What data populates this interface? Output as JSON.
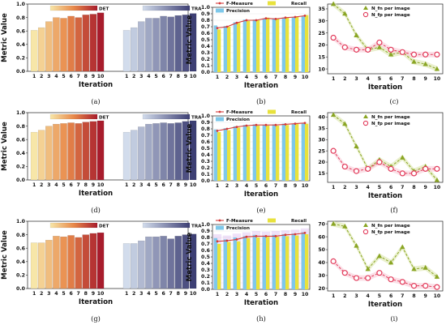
{
  "figure": {
    "sublabels": [
      "(a)",
      "(b)",
      "(c)",
      "(d)",
      "(e)",
      "(f)",
      "(g)",
      "(h)",
      "(i)"
    ]
  },
  "colors": {
    "det_start": "#f7e6a8",
    "det_mid": "#e8894a",
    "det_end": "#a81c2c",
    "tra_start": "#d2dcec",
    "tra_end": "#3d3f74",
    "fmeasure_line": "#d43a3a",
    "precision_bar": "#7ec8ea",
    "recall_bar": "#e8e23c",
    "fp_marker": "#e23a5a",
    "fn_marker": "#8aa524",
    "fp_band": "#f7c7d3",
    "fn_band": "#d9e3a6",
    "recall_band": "#d2a8ec"
  },
  "chart_data": [
    {
      "id": "a",
      "type": "bar",
      "ylabel": "Metric Value",
      "xlabel": "Iteration",
      "ylim": [
        0,
        1.0
      ],
      "yticks": [
        0,
        0.2,
        0.4,
        0.6,
        0.8,
        1.0
      ],
      "categories": [
        "1",
        "2",
        "3",
        "4",
        "5",
        "6",
        "7",
        "8",
        "9",
        "10"
      ],
      "legend": [
        "DET",
        "TRA"
      ],
      "series": [
        {
          "name": "DET",
          "values": [
            0.61,
            0.65,
            0.74,
            0.8,
            0.79,
            0.82,
            0.8,
            0.84,
            0.85,
            0.87
          ]
        },
        {
          "name": "TRA",
          "values": [
            0.61,
            0.65,
            0.74,
            0.79,
            0.79,
            0.82,
            0.81,
            0.83,
            0.84,
            0.86
          ]
        }
      ]
    },
    {
      "id": "b",
      "type": "bar",
      "ylabel": "Metric Value",
      "xlabel": "Iteration",
      "ylim": [
        0,
        1.0
      ],
      "yticks": [
        0,
        0.1,
        0.2,
        0.3,
        0.4,
        0.5,
        0.6,
        0.7,
        0.8,
        0.9,
        1.0
      ],
      "categories": [
        "1",
        "2",
        "3",
        "4",
        "5",
        "6",
        "7",
        "8",
        "9",
        "10"
      ],
      "legend": [
        "F-Measure",
        "Recall",
        "Precision"
      ],
      "series": [
        {
          "name": "Precision",
          "values": [
            0.72,
            0.71,
            0.77,
            0.81,
            0.81,
            0.82,
            0.83,
            0.84,
            0.85,
            0.86
          ]
        },
        {
          "name": "Recall",
          "values": [
            0.66,
            0.7,
            0.76,
            0.79,
            0.8,
            0.84,
            0.82,
            0.84,
            0.86,
            0.88
          ]
        },
        {
          "name": "F-Measure",
          "values": [
            0.68,
            0.7,
            0.76,
            0.8,
            0.8,
            0.83,
            0.82,
            0.84,
            0.85,
            0.87
          ]
        }
      ]
    },
    {
      "id": "c",
      "type": "line",
      "xlabel": "Iteration",
      "ylim": [
        8,
        37
      ],
      "yticks": [
        10,
        15,
        20,
        25,
        30,
        35
      ],
      "categories": [
        "1",
        "2",
        "3",
        "4",
        "5",
        "6",
        "7",
        "8",
        "9",
        "10"
      ],
      "legend": [
        "N_fn per image",
        "N_fp per image"
      ],
      "series": [
        {
          "name": "N_fn per image",
          "values": [
            37,
            33,
            24,
            18,
            19,
            16,
            17,
            13,
            12,
            10
          ]
        },
        {
          "name": "N_fp per image",
          "values": [
            23,
            19,
            18,
            18,
            21,
            18,
            17,
            16,
            16,
            16
          ]
        }
      ]
    },
    {
      "id": "d",
      "type": "bar",
      "ylabel": "Metric Value",
      "xlabel": "Iteration",
      "ylim": [
        0,
        1.0
      ],
      "yticks": [
        0,
        0.2,
        0.4,
        0.6,
        0.8,
        1.0
      ],
      "categories": [
        "1",
        "2",
        "3",
        "4",
        "5",
        "6",
        "7",
        "8",
        "9",
        "10"
      ],
      "legend": [
        "DET",
        "TRA"
      ],
      "series": [
        {
          "name": "DET",
          "values": [
            0.71,
            0.74,
            0.8,
            0.83,
            0.84,
            0.85,
            0.84,
            0.86,
            0.87,
            0.88
          ]
        },
        {
          "name": "TRA",
          "values": [
            0.71,
            0.74,
            0.79,
            0.83,
            0.84,
            0.85,
            0.84,
            0.85,
            0.87,
            0.88
          ]
        }
      ]
    },
    {
      "id": "e",
      "type": "bar",
      "ylabel": "Metric Value",
      "xlabel": "Iteration",
      "ylim": [
        0,
        1.0
      ],
      "yticks": [
        0,
        0.1,
        0.2,
        0.3,
        0.4,
        0.5,
        0.6,
        0.7,
        0.8,
        0.9,
        1.0
      ],
      "categories": [
        "1",
        "2",
        "3",
        "4",
        "5",
        "6",
        "7",
        "8",
        "9",
        "10"
      ],
      "legend": [
        "F-Measure",
        "Recall",
        "Precision"
      ],
      "series": [
        {
          "name": "Precision",
          "values": [
            0.79,
            0.81,
            0.84,
            0.86,
            0.87,
            0.86,
            0.87,
            0.88,
            0.88,
            0.89
          ]
        },
        {
          "name": "Recall",
          "values": [
            0.75,
            0.78,
            0.82,
            0.84,
            0.85,
            0.85,
            0.85,
            0.86,
            0.88,
            0.88
          ]
        },
        {
          "name": "F-Measure",
          "values": [
            0.77,
            0.8,
            0.83,
            0.85,
            0.86,
            0.86,
            0.86,
            0.87,
            0.88,
            0.89
          ]
        }
      ]
    },
    {
      "id": "f",
      "type": "line",
      "xlabel": "Iteration",
      "ylim": [
        11,
        42
      ],
      "yticks": [
        15,
        20,
        25,
        30,
        35,
        40
      ],
      "categories": [
        "1",
        "2",
        "3",
        "4",
        "5",
        "6",
        "7",
        "8",
        "9",
        "10"
      ],
      "legend": [
        "N_fn per image",
        "N_fp per image"
      ],
      "series": [
        {
          "name": "N_fn per image",
          "values": [
            41,
            37,
            27,
            17,
            21,
            18,
            22,
            16,
            18,
            12
          ]
        },
        {
          "name": "N_fp per image",
          "values": [
            25,
            18,
            16,
            17,
            20,
            17,
            15,
            15,
            17,
            17
          ]
        }
      ]
    },
    {
      "id": "g",
      "type": "bar",
      "ylabel": "Metric Value",
      "xlabel": "Iteration",
      "ylim": [
        0,
        1.0
      ],
      "yticks": [
        0,
        0.2,
        0.4,
        0.6,
        0.8,
        1.0
      ],
      "categories": [
        "1",
        "2",
        "3",
        "4",
        "5",
        "6",
        "7",
        "8",
        "9",
        "10"
      ],
      "legend": [
        "DET",
        "TRA"
      ],
      "series": [
        {
          "name": "DET",
          "values": [
            0.68,
            0.68,
            0.72,
            0.78,
            0.77,
            0.79,
            0.76,
            0.8,
            0.82,
            0.83
          ]
        },
        {
          "name": "TRA",
          "values": [
            0.67,
            0.67,
            0.71,
            0.77,
            0.77,
            0.78,
            0.74,
            0.78,
            0.8,
            0.81
          ]
        }
      ]
    },
    {
      "id": "h",
      "type": "bar",
      "ylabel": "Metric Value",
      "xlabel": "Iteration",
      "ylim": [
        0,
        1.0
      ],
      "yticks": [
        0,
        0.1,
        0.2,
        0.3,
        0.4,
        0.5,
        0.6,
        0.7,
        0.8,
        0.9,
        1.0
      ],
      "categories": [
        "1",
        "2",
        "3",
        "4",
        "5",
        "6",
        "7",
        "8",
        "9",
        "10"
      ],
      "legend": [
        "F-Measure",
        "Recall",
        "Precision"
      ],
      "series": [
        {
          "name": "Precision",
          "values": [
            0.79,
            0.77,
            0.8,
            0.82,
            0.84,
            0.83,
            0.84,
            0.85,
            0.86,
            0.88
          ]
        },
        {
          "name": "Recall",
          "values": [
            0.7,
            0.73,
            0.74,
            0.79,
            0.8,
            0.81,
            0.81,
            0.82,
            0.83,
            0.85
          ]
        },
        {
          "name": "F-Measure",
          "values": [
            0.74,
            0.75,
            0.77,
            0.81,
            0.82,
            0.82,
            0.82,
            0.84,
            0.85,
            0.87
          ]
        }
      ]
    },
    {
      "id": "i",
      "type": "line",
      "xlabel": "Iteration",
      "ylim": [
        18,
        72
      ],
      "yticks": [
        20,
        30,
        40,
        50,
        60,
        70
      ],
      "categories": [
        "1",
        "2",
        "3",
        "4",
        "5",
        "6",
        "7",
        "8",
        "9",
        "10"
      ],
      "legend": [
        "N_fn per image",
        "N_fp per image"
      ],
      "series": [
        {
          "name": "N_fn per image",
          "values": [
            70,
            68,
            53,
            35,
            45,
            40,
            52,
            35,
            36,
            29
          ]
        },
        {
          "name": "N_fp per image",
          "values": [
            41,
            32,
            28,
            28,
            32,
            27,
            25,
            22,
            22,
            21
          ]
        }
      ]
    }
  ]
}
